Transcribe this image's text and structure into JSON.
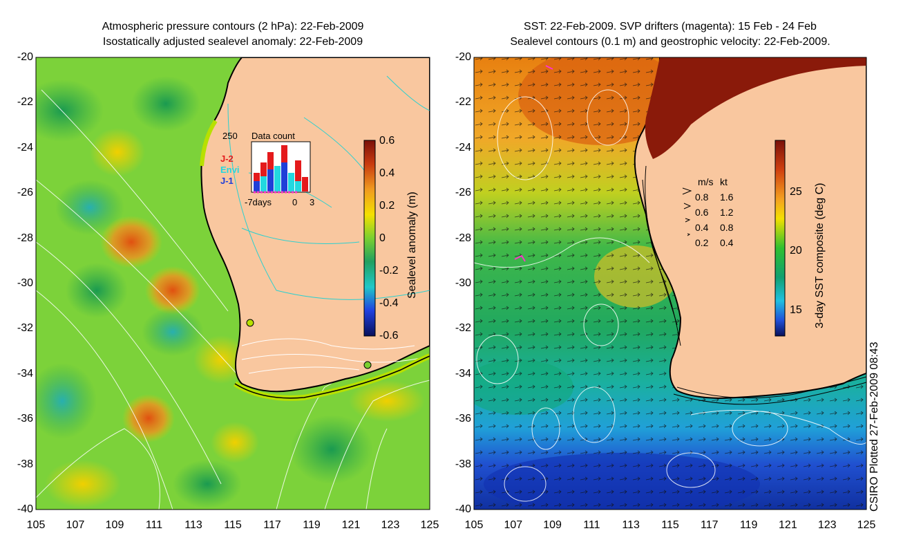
{
  "left_panel": {
    "title_line1": "Atmospheric pressure contours (2 hPa): 22-Feb-2009",
    "title_line2": "Isostatically adjusted sealevel anomaly: 22-Feb-2009",
    "colorbar": {
      "label": "Sealevel anomaly (m)",
      "ticks": [
        "0.6",
        "0.4",
        "0.2",
        "0",
        "-0.2",
        "-0.4",
        "-0.6"
      ]
    },
    "inset": {
      "title": "Data count",
      "ymax_label": "250",
      "xlabel_left": "-7days",
      "xlabel_mid": "0",
      "xlabel_right": "3",
      "series": [
        {
          "name": "J-2",
          "color": "#e41a1c"
        },
        {
          "name": "Envi",
          "color": "#22d8e0"
        },
        {
          "name": "J-1",
          "color": "#1f3fd8"
        }
      ]
    }
  },
  "right_panel": {
    "title_line1": "SST: 22-Feb-2009. SVP drifters (magenta): 15 Feb - 24 Feb",
    "title_line2": "Sealevel contours (0.1 m) and geostrophic velocity: 22-Feb-2009.",
    "colorbar": {
      "label": "3-day SST composite (deg C)",
      "ticks": [
        "25",
        "20",
        "15"
      ]
    },
    "velocity_legend": {
      "header_ms": "m/s",
      "header_kt": "kt",
      "rows": [
        {
          "ms": "0.8",
          "kt": "1.6"
        },
        {
          "ms": "0.6",
          "kt": "1.2"
        },
        {
          "ms": "0.4",
          "kt": "0.8"
        },
        {
          "ms": "0.2",
          "kt": "0.4"
        }
      ]
    }
  },
  "axes": {
    "y_ticks": [
      "-20",
      "-22",
      "-24",
      "-26",
      "-28",
      "-30",
      "-32",
      "-34",
      "-36",
      "-38",
      "-40"
    ],
    "x_ticks": [
      "105",
      "107",
      "109",
      "111",
      "113",
      "115",
      "117",
      "119",
      "121",
      "123",
      "125"
    ]
  },
  "footer": "CSIRO Plotted 27-Feb-2009 08:43",
  "colors": {
    "land": "#f9c79f",
    "ocean_anomaly_base": "#7bd43a",
    "coastline": "#000000",
    "pressure_contour": "#ffffff",
    "land_contour": "#2ad0d0",
    "drifter": "#ff33cc"
  }
}
